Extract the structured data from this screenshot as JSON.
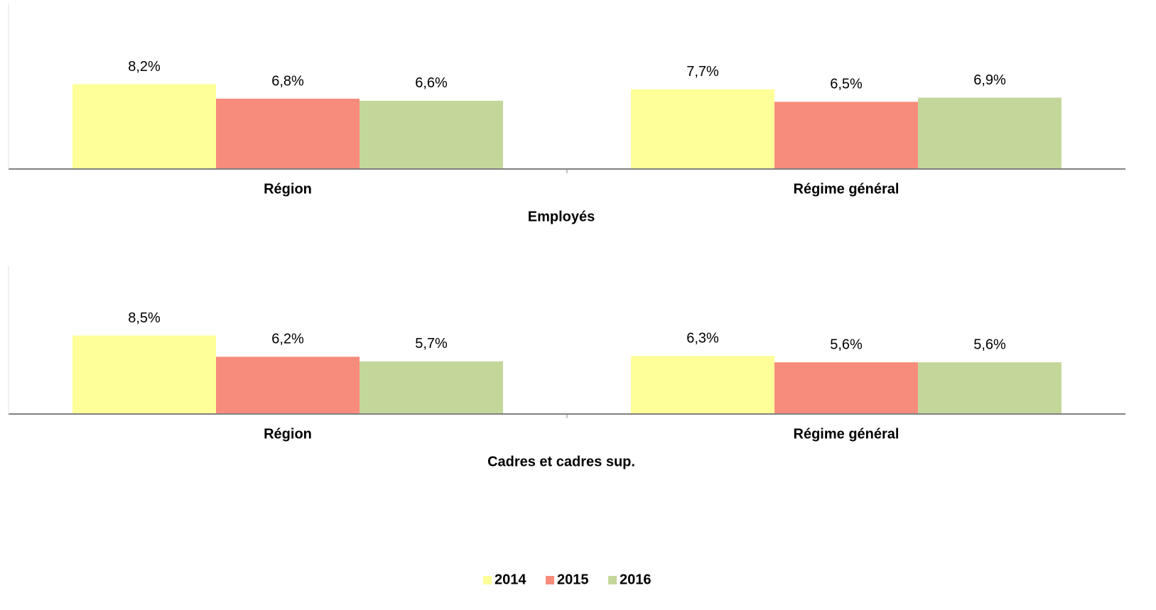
{
  "chart_data": [
    {
      "type": "bar",
      "xlabel": "Employés",
      "categories": [
        "Région",
        "Régime général"
      ],
      "series": [
        {
          "name": "2014",
          "color": "#ffff99",
          "values": [
            8.2,
            7.7
          ],
          "value_labels": [
            "8,2%",
            "7,7%"
          ]
        },
        {
          "name": "2015",
          "color": "#f78c7c",
          "values": [
            6.8,
            6.5
          ],
          "value_labels": [
            "6,8%",
            "6,5%"
          ]
        },
        {
          "name": "2016",
          "color": "#c4d79b",
          "values": [
            6.6,
            6.9
          ],
          "value_labels": [
            "6,6%",
            "6,9%"
          ]
        }
      ],
      "ylim": [
        0,
        16
      ]
    },
    {
      "type": "bar",
      "xlabel": "Cadres et cadres sup.",
      "categories": [
        "Région",
        "Régime général"
      ],
      "series": [
        {
          "color": "#ffff99",
          "values": [
            8.5,
            6.3
          ],
          "value_labels": [
            "8,5%",
            "6,3%"
          ]
        },
        {
          "color": "#f78c7c",
          "values": [
            6.2,
            5.6
          ],
          "value_labels": [
            "6,2%",
            "5,6%"
          ]
        },
        {
          "color": "#c4d79b",
          "values": [
            5.7,
            5.6
          ],
          "value_labels": [
            "5,7%",
            "5,6%"
          ]
        }
      ],
      "ylim": [
        0,
        16
      ]
    }
  ]
}
